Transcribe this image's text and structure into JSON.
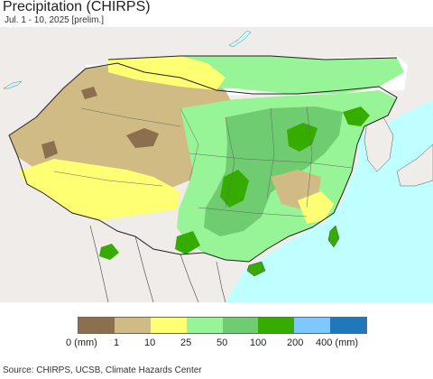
{
  "header": {
    "title": "Precipitation (CHIRPS)",
    "subtitle": "Jul. 1 - 10, 2025 [prelim.]"
  },
  "legend": {
    "colors": [
      "#8b6f4e",
      "#cfbb83",
      "#ffff73",
      "#98f597",
      "#70cc70",
      "#37ac00",
      "#7ec7ff",
      "#1e78b9"
    ],
    "ticks": [
      "0 (mm)",
      "1",
      "10",
      "25",
      "50",
      "100",
      "200",
      "400 (mm)"
    ]
  },
  "footer": {
    "source": "Source: CHIRPS, UCSB, Climate Hazards Center"
  },
  "map_colors": {
    "ocean": "#bfffff",
    "outside_land": "#f0ecea",
    "no_data": "#ffffff"
  }
}
